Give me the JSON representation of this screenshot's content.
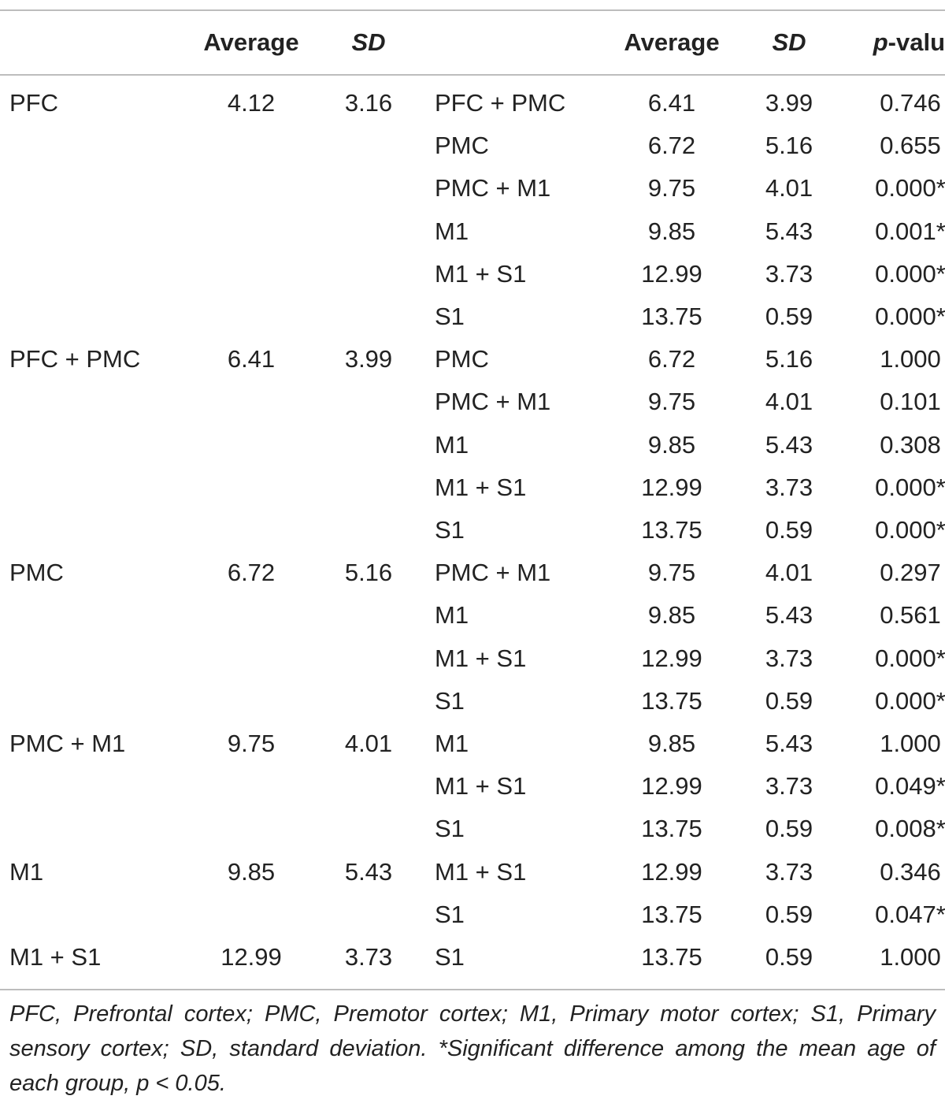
{
  "header": {
    "average_label": "Average",
    "sd_label": "SD",
    "comp_average_label": "Average",
    "comp_sd_label": "SD",
    "p_italic": "p",
    "p_suffix": "-value"
  },
  "rows": [
    {
      "region": "PFC",
      "avg": "4.12",
      "sd": "3.16",
      "comp": "PFC + PMC",
      "cavg": "6.41",
      "csd": "3.99",
      "p": "0.746"
    },
    {
      "region": "",
      "avg": "",
      "sd": "",
      "comp": "PMC",
      "cavg": "6.72",
      "csd": "5.16",
      "p": "0.655"
    },
    {
      "region": "",
      "avg": "",
      "sd": "",
      "comp": "PMC + M1",
      "cavg": "9.75",
      "csd": "4.01",
      "p": "0.000*"
    },
    {
      "region": "",
      "avg": "",
      "sd": "",
      "comp": "M1",
      "cavg": "9.85",
      "csd": "5.43",
      "p": "0.001*"
    },
    {
      "region": "",
      "avg": "",
      "sd": "",
      "comp": "M1 + S1",
      "cavg": "12.99",
      "csd": "3.73",
      "p": "0.000*"
    },
    {
      "region": "",
      "avg": "",
      "sd": "",
      "comp": "S1",
      "cavg": "13.75",
      "csd": "0.59",
      "p": "0.000*"
    },
    {
      "region": "PFC + PMC",
      "avg": "6.41",
      "sd": "3.99",
      "comp": "PMC",
      "cavg": "6.72",
      "csd": "5.16",
      "p": "1.000"
    },
    {
      "region": "",
      "avg": "",
      "sd": "",
      "comp": "PMC + M1",
      "cavg": "9.75",
      "csd": "4.01",
      "p": "0.101"
    },
    {
      "region": "",
      "avg": "",
      "sd": "",
      "comp": "M1",
      "cavg": "9.85",
      "csd": "5.43",
      "p": "0.308"
    },
    {
      "region": "",
      "avg": "",
      "sd": "",
      "comp": "M1 + S1",
      "cavg": "12.99",
      "csd": "3.73",
      "p": "0.000*"
    },
    {
      "region": "",
      "avg": "",
      "sd": "",
      "comp": "S1",
      "cavg": "13.75",
      "csd": "0.59",
      "p": "0.000*"
    },
    {
      "region": "PMC",
      "avg": "6.72",
      "sd": "5.16",
      "comp": "PMC + M1",
      "cavg": "9.75",
      "csd": "4.01",
      "p": "0.297"
    },
    {
      "region": "",
      "avg": "",
      "sd": "",
      "comp": "M1",
      "cavg": "9.85",
      "csd": "5.43",
      "p": "0.561"
    },
    {
      "region": "",
      "avg": "",
      "sd": "",
      "comp": "M1 + S1",
      "cavg": "12.99",
      "csd": "3.73",
      "p": "0.000*"
    },
    {
      "region": "",
      "avg": "",
      "sd": "",
      "comp": "S1",
      "cavg": "13.75",
      "csd": "0.59",
      "p": "0.000*"
    },
    {
      "region": "PMC + M1",
      "avg": "9.75",
      "sd": "4.01",
      "comp": "M1",
      "cavg": "9.85",
      "csd": "5.43",
      "p": "1.000"
    },
    {
      "region": "",
      "avg": "",
      "sd": "",
      "comp": "M1 + S1",
      "cavg": "12.99",
      "csd": "3.73",
      "p": "0.049*"
    },
    {
      "region": "",
      "avg": "",
      "sd": "",
      "comp": "S1",
      "cavg": "13.75",
      "csd": "0.59",
      "p": "0.008*"
    },
    {
      "region": "M1",
      "avg": "9.85",
      "sd": "5.43",
      "comp": "M1 + S1",
      "cavg": "12.99",
      "csd": "3.73",
      "p": "0.346"
    },
    {
      "region": "",
      "avg": "",
      "sd": "",
      "comp": "S1",
      "cavg": "13.75",
      "csd": "0.59",
      "p": "0.047*"
    },
    {
      "region": "M1 + S1",
      "avg": "12.99",
      "sd": "3.73",
      "comp": "S1",
      "cavg": "13.75",
      "csd": "0.59",
      "p": "1.000"
    }
  ],
  "footnote": "PFC, Prefrontal cortex; PMC, Premotor cortex; M1, Primary motor cortex; S1, Primary sensory cortex; SD, standard deviation. *Significant difference among the mean age of each group, p < 0.05."
}
